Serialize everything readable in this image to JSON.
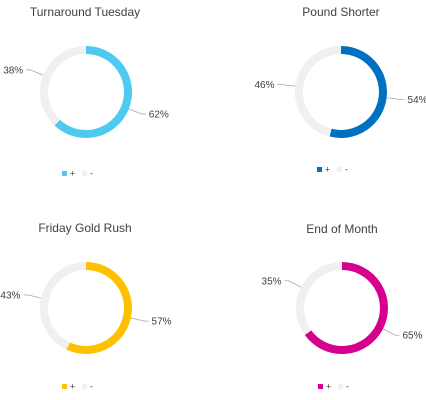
{
  "chart_data": [
    {
      "type": "pie",
      "title": "Turnaround Tuesday",
      "series": [
        {
          "name": "+",
          "value": 62,
          "label": "62%",
          "color": "#4EC9F0"
        },
        {
          "name": "-",
          "value": 38,
          "label": "38%",
          "color": "#F0F0F0"
        }
      ],
      "legend": "bottom"
    },
    {
      "type": "pie",
      "title": "Pound Shorter",
      "series": [
        {
          "name": "+",
          "value": 54,
          "label": "54%",
          "color": "#0070C0"
        },
        {
          "name": "-",
          "value": 46,
          "label": "46%",
          "color": "#F0F0F0"
        }
      ],
      "legend": "bottom"
    },
    {
      "type": "pie",
      "title": "Friday Gold Rush",
      "series": [
        {
          "name": "+",
          "value": 57,
          "label": "57%",
          "color": "#FFC000"
        },
        {
          "name": "-",
          "value": 43,
          "label": "43%",
          "color": "#F0F0F0"
        }
      ],
      "legend": "bottom"
    },
    {
      "type": "pie",
      "title": "End of Month",
      "series": [
        {
          "name": "+",
          "value": 65,
          "label": "65%",
          "color": "#D6008E"
        },
        {
          "name": "-",
          "value": 35,
          "label": "35%",
          "color": "#F0F0F0"
        }
      ],
      "legend": "bottom"
    }
  ]
}
